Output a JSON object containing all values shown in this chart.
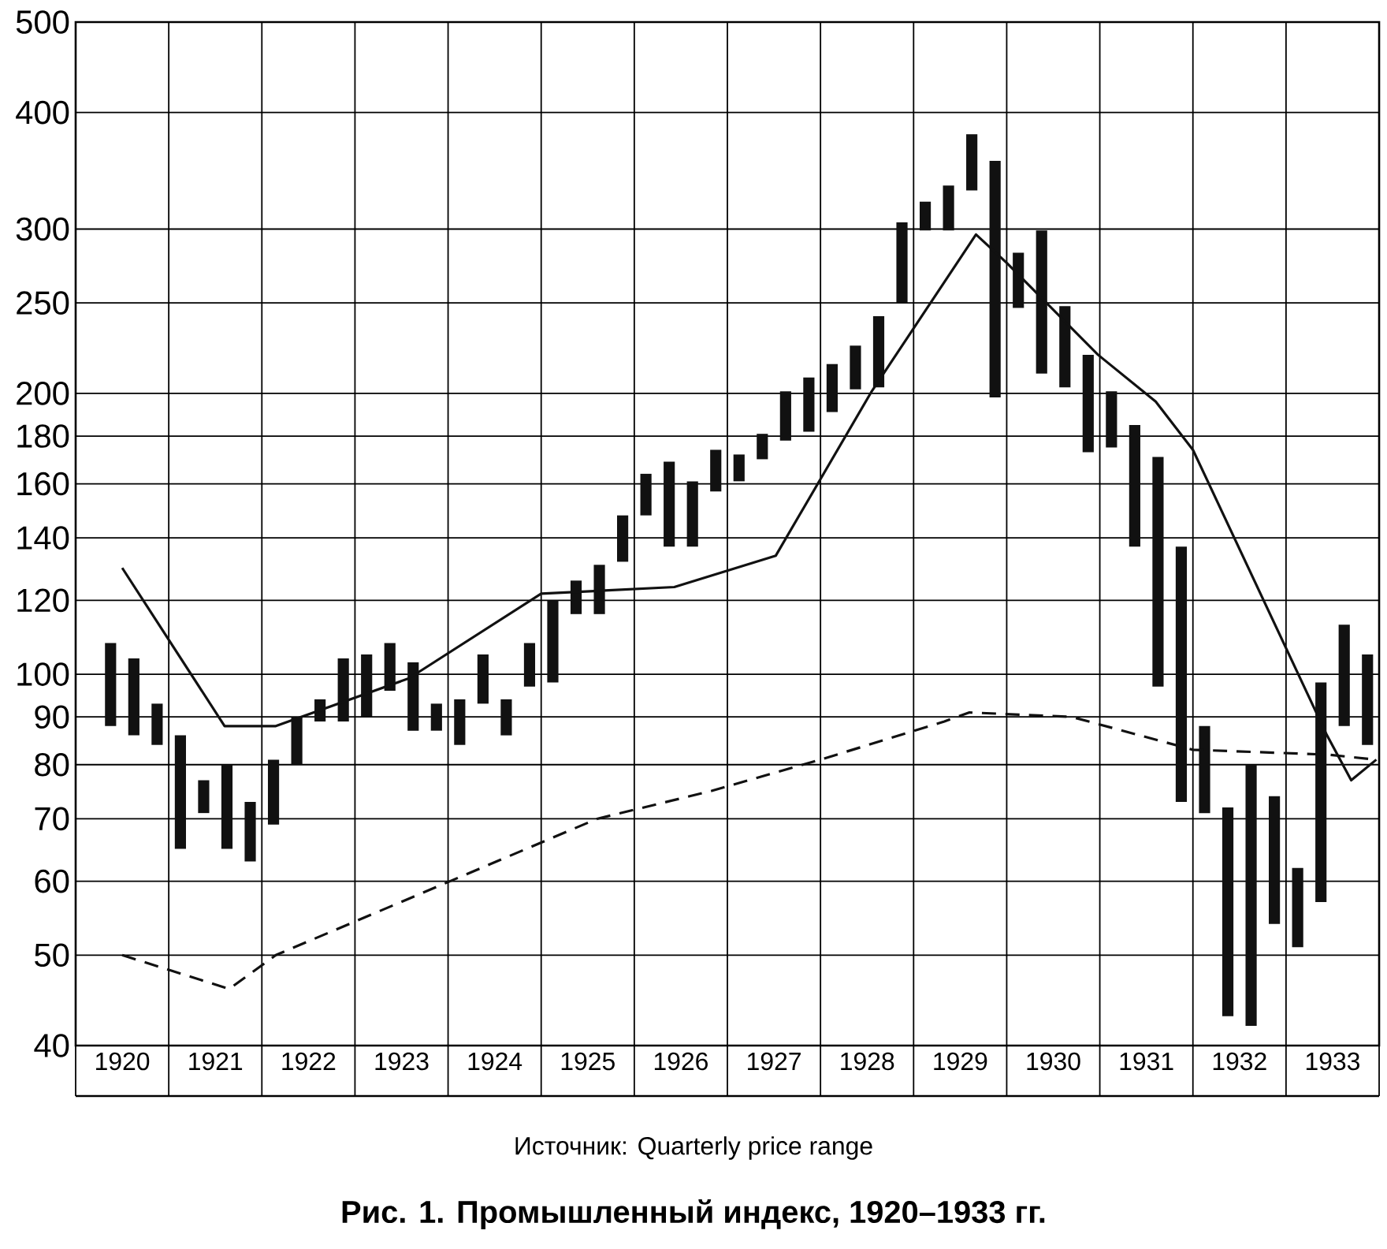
{
  "chart_data": {
    "type": "bar",
    "title": "Рис. 1. Промышленный индекс, 1920–1933 гг.",
    "annotations": [
      "Источник: Quarterly price range"
    ],
    "log": true,
    "grid": true,
    "xlim": [
      1920,
      1934
    ],
    "xticks": [
      {
        "value": 1920,
        "label": null
      },
      {
        "value": 1921,
        "label": null
      },
      {
        "value": 1922,
        "label": null
      },
      {
        "value": 1923,
        "label": null
      },
      {
        "value": 1924,
        "label": null
      },
      {
        "value": 1925,
        "label": null
      },
      {
        "value": 1926,
        "label": null
      },
      {
        "value": 1927,
        "label": null
      },
      {
        "value": 1928,
        "label": null
      },
      {
        "value": 1929,
        "label": null
      },
      {
        "value": 1930,
        "label": null
      },
      {
        "value": 1931,
        "label": null
      },
      {
        "value": 1932,
        "label": null
      },
      {
        "value": 1933,
        "label": null
      },
      {
        "value": 1934,
        "label": null
      },
      {
        "value": 1920.5,
        "label": "1920"
      },
      {
        "value": 1921.5,
        "label": "1921"
      },
      {
        "value": 1922.5,
        "label": "1922"
      },
      {
        "value": 1923.5,
        "label": "1923"
      },
      {
        "value": 1924.5,
        "label": "1924"
      },
      {
        "value": 1925.5,
        "label": "1925"
      },
      {
        "value": 1926.5,
        "label": "1926"
      },
      {
        "value": 1927.5,
        "label": "1927"
      },
      {
        "value": 1928.5,
        "label": "1928"
      },
      {
        "value": 1929.5,
        "label": "1929"
      },
      {
        "value": 1930.5,
        "label": "1930"
      },
      {
        "value": 1931.5,
        "label": "1931"
      },
      {
        "value": 1932.5,
        "label": "1932"
      },
      {
        "value": 1933.5,
        "label": "1933"
      }
    ],
    "ylim": [
      40,
      500
    ],
    "yticks": [
      40,
      50,
      60,
      70,
      80,
      90,
      100,
      120,
      140,
      160,
      180,
      200,
      250,
      300,
      400,
      500
    ],
    "series": [
      {
        "color": "#111111",
        "x": [
          1920.375,
          1920.625,
          1920.875,
          1921.125,
          1921.375,
          1921.625,
          1921.875,
          1922.125,
          1922.375,
          1922.625,
          1922.875,
          1923.125,
          1923.375,
          1923.625,
          1923.875,
          1924.125,
          1924.375,
          1924.625,
          1924.875,
          1925.125,
          1925.375,
          1925.625,
          1925.875,
          1926.125,
          1926.375,
          1926.625,
          1926.875,
          1927.125,
          1927.375,
          1927.625,
          1927.875,
          1928.125,
          1928.375,
          1928.625,
          1928.875,
          1929.125,
          1929.375,
          1929.625,
          1929.875,
          1930.125,
          1930.375,
          1930.625,
          1930.875,
          1931.125,
          1931.375,
          1931.625,
          1931.875,
          1932.125,
          1932.375,
          1932.625,
          1932.875,
          1933.125,
          1933.375,
          1933.625,
          1933.875
        ],
        "base": [
          88,
          86,
          84,
          65,
          71,
          65,
          63,
          69,
          80,
          89,
          89,
          90,
          96,
          87,
          87,
          84,
          93,
          86,
          97,
          98,
          116,
          116,
          132,
          148,
          137,
          137,
          157,
          161,
          170,
          178,
          182,
          191,
          202,
          203,
          250,
          299,
          299,
          330,
          198,
          247,
          210,
          203,
          173,
          175,
          137,
          97,
          73,
          71,
          43,
          42,
          54,
          51,
          57,
          88,
          84
        ],
        "values": [
          20,
          18,
          9,
          21,
          6,
          15,
          10,
          12,
          10,
          5,
          15,
          15,
          12,
          16,
          6,
          10,
          12,
          8,
          11,
          22,
          10,
          15,
          16,
          16,
          32,
          24,
          17,
          11,
          11,
          23,
          26,
          24,
          23,
          39,
          55,
          22,
          35,
          49,
          157,
          36,
          89,
          45,
          47,
          26,
          48,
          74,
          64,
          17,
          29,
          38,
          20,
          11,
          41,
          25,
          21
        ]
      },
      {
        "type": "line",
        "color": "#111111",
        "line_style": "solid",
        "x": [
          1920.5,
          1921.6,
          1922.15,
          1923.58,
          1925.0,
          1926.43,
          1927.52,
          1928.55,
          1929.67,
          1930.0,
          1930.98,
          1931.6,
          1932.0,
          1933.44,
          1933.7,
          1933.97
        ],
        "values": [
          130,
          88,
          88,
          99,
          122,
          124,
          134,
          201,
          296,
          276,
          220,
          196,
          174,
          86,
          77,
          81
        ]
      },
      {
        "type": "line",
        "color": "#111111",
        "line_style": "dashed",
        "x": [
          1920.5,
          1921.65,
          1922.15,
          1925.6,
          1926.83,
          1928.0,
          1929.33,
          1929.6,
          1930.7,
          1932.0,
          1933.45,
          1933.97
        ],
        "values": [
          50,
          46,
          50,
          70,
          75,
          81,
          89,
          91,
          90,
          83,
          82,
          81
        ]
      }
    ]
  }
}
